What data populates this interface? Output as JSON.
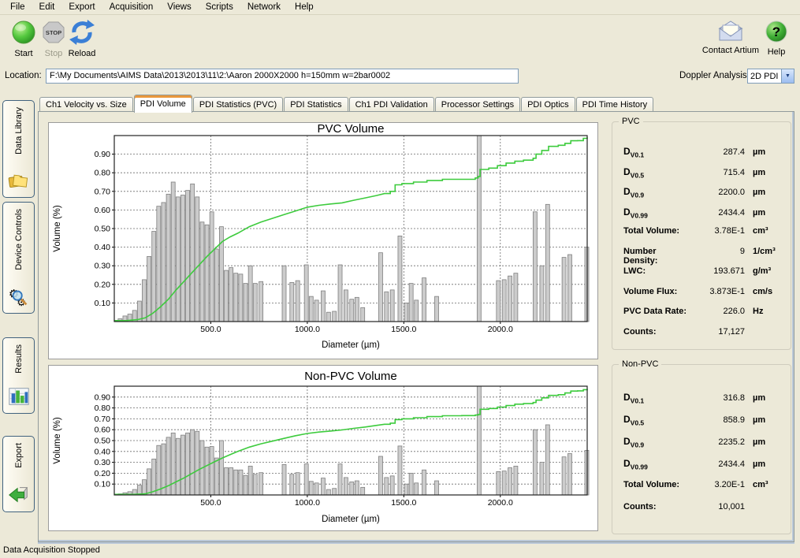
{
  "menu": {
    "items": [
      "File",
      "Edit",
      "Export",
      "Acquisition",
      "Views",
      "Scripts",
      "Network",
      "Help"
    ]
  },
  "toolbar": {
    "start_label": "Start",
    "stop_label": "Stop",
    "stop_badge": "STOP",
    "reload_label": "Reload",
    "contact_label": "Contact Artium",
    "help_label": "Help"
  },
  "location": {
    "label": "Location:",
    "value": "F:\\My Documents\\AIMS Data\\2013\\2013\\11\\2:\\Aaron 2000X2000  h=150mm w=2bar0002"
  },
  "doppler": {
    "label": "Doppler Analysis:",
    "value": "2D PDI",
    "arrow_icon": "chevron-down-icon"
  },
  "sidebar": {
    "items": [
      {
        "label": "Data Library",
        "icon": "folders-icon"
      },
      {
        "label": "Device Controls",
        "icon": "gears-icon"
      },
      {
        "label": "Results",
        "icon": "bar-chart-icon"
      },
      {
        "label": "Export",
        "icon": "export-arrow-icon"
      }
    ]
  },
  "tabs": [
    "Ch1 Velocity vs. Size",
    "PDI Volume",
    "PDI Statistics (PVC)",
    "PDI Statistics",
    "Ch1 PDI Validation",
    "Processor Settings",
    "PDI Optics",
    "PDI Time History"
  ],
  "tabs_selected_index": 1,
  "stats": {
    "pvc": {
      "title": "PVC",
      "rows": [
        {
          "d": "D",
          "sub": "V0.1",
          "value": "287.4",
          "unit": "µm"
        },
        {
          "d": "D",
          "sub": "V0.5",
          "value": "715.4",
          "unit": "µm"
        },
        {
          "d": "D",
          "sub": "V0.9",
          "value": "2200.0",
          "unit": "µm"
        },
        {
          "d": "D",
          "sub": "V0.99",
          "value": "2434.4",
          "unit": "µm"
        },
        {
          "label": "Total Volume:",
          "value": "3.78E-1",
          "unit": "cm³"
        },
        {
          "label": "Number Density:",
          "value": "9",
          "unit": "1/cm³"
        },
        {
          "label": "LWC:",
          "value": "193.671",
          "unit": "g/m³"
        },
        {
          "label": "Volume Flux:",
          "value": "3.873E-1",
          "unit": "cm/s"
        },
        {
          "label": "PVC Data Rate:",
          "value": "226.0",
          "unit": "Hz"
        },
        {
          "label": "Counts:",
          "value": "17,127",
          "unit": ""
        }
      ]
    },
    "nonpvc": {
      "title": "Non-PVC",
      "rows": [
        {
          "d": "D",
          "sub": "V0.1",
          "value": "316.8",
          "unit": "µm"
        },
        {
          "d": "D",
          "sub": "V0.5",
          "value": "858.9",
          "unit": "µm"
        },
        {
          "d": "D",
          "sub": "V0.9",
          "value": "2235.2",
          "unit": "µm"
        },
        {
          "d": "D",
          "sub": "V0.99",
          "value": "2434.4",
          "unit": "µm"
        },
        {
          "label": "Total Volume:",
          "value": "3.20E-1",
          "unit": "cm³"
        },
        {
          "label": "Counts:",
          "value": "10,001",
          "unit": ""
        }
      ]
    }
  },
  "status": "Data Acquisition Stopped",
  "chart_data": [
    {
      "type": "bar",
      "title": "PVC Volume",
      "xlabel": "Diameter (µm)",
      "ylabel": "Volume (%)",
      "xlim": [
        0,
        2450
      ],
      "ylim": [
        0,
        1.0
      ],
      "xticks": [
        500,
        1000,
        1500,
        2000
      ],
      "xtick_labels": [
        "500.0",
        "1000.0",
        "1500.0",
        "2000.0"
      ],
      "yticks": [
        0.1,
        0.2,
        0.3,
        0.4,
        0.5,
        0.6,
        0.7,
        0.8,
        0.9
      ],
      "grid": true,
      "colors": {
        "bar_fill": "#cccccc",
        "bar_stroke": "#7f7f7f",
        "line": "#3dcb3d"
      },
      "bars": [
        [
          30,
          0.015
        ],
        [
          55,
          0.03
        ],
        [
          80,
          0.04
        ],
        [
          105,
          0.06
        ],
        [
          130,
          0.11
        ],
        [
          155,
          0.225
        ],
        [
          180,
          0.35
        ],
        [
          205,
          0.485
        ],
        [
          230,
          0.62
        ],
        [
          255,
          0.64
        ],
        [
          280,
          0.685
        ],
        [
          305,
          0.75
        ],
        [
          330,
          0.67
        ],
        [
          355,
          0.68
        ],
        [
          380,
          0.705
        ],
        [
          405,
          0.74
        ],
        [
          430,
          0.67
        ],
        [
          455,
          0.535
        ],
        [
          480,
          0.52
        ],
        [
          505,
          0.59
        ],
        [
          530,
          0.39
        ],
        [
          555,
          0.51
        ],
        [
          580,
          0.275
        ],
        [
          605,
          0.29
        ],
        [
          630,
          0.26
        ],
        [
          655,
          0.255
        ],
        [
          680,
          0.205
        ],
        [
          705,
          0.3
        ],
        [
          730,
          0.205
        ],
        [
          760,
          0.215
        ],
        [
          880,
          0.3
        ],
        [
          920,
          0.21
        ],
        [
          950,
          0.22
        ],
        [
          995,
          0.305
        ],
        [
          1020,
          0.135
        ],
        [
          1048,
          0.115
        ],
        [
          1082,
          0.165
        ],
        [
          1110,
          0.05
        ],
        [
          1140,
          0.055
        ],
        [
          1170,
          0.305
        ],
        [
          1200,
          0.17
        ],
        [
          1230,
          0.12
        ],
        [
          1257,
          0.13
        ],
        [
          1287,
          0.075
        ],
        [
          1380,
          0.37
        ],
        [
          1410,
          0.16
        ],
        [
          1440,
          0.17
        ],
        [
          1480,
          0.46
        ],
        [
          1512,
          0.1
        ],
        [
          1538,
          0.205
        ],
        [
          1565,
          0.115
        ],
        [
          1605,
          0.235
        ],
        [
          1670,
          0.135
        ],
        [
          1890,
          1.0
        ],
        [
          1990,
          0.22
        ],
        [
          2020,
          0.225
        ],
        [
          2050,
          0.245
        ],
        [
          2080,
          0.26
        ],
        [
          2180,
          0.59
        ],
        [
          2215,
          0.3
        ],
        [
          2245,
          0.63
        ],
        [
          2330,
          0.345
        ],
        [
          2360,
          0.36
        ],
        [
          2448,
          0.4
        ]
      ],
      "cumulative_line": {
        "name": "cumulative-volume",
        "step_from": 1400,
        "points": [
          [
            0,
            0.005
          ],
          [
            60,
            0.005
          ],
          [
            120,
            0.01
          ],
          [
            160,
            0.02
          ],
          [
            200,
            0.045
          ],
          [
            240,
            0.08
          ],
          [
            280,
            0.12
          ],
          [
            320,
            0.17
          ],
          [
            360,
            0.215
          ],
          [
            400,
            0.26
          ],
          [
            440,
            0.305
          ],
          [
            480,
            0.35
          ],
          [
            520,
            0.39
          ],
          [
            560,
            0.43
          ],
          [
            600,
            0.455
          ],
          [
            640,
            0.475
          ],
          [
            700,
            0.51
          ],
          [
            760,
            0.535
          ],
          [
            820,
            0.555
          ],
          [
            880,
            0.575
          ],
          [
            940,
            0.595
          ],
          [
            1000,
            0.615
          ],
          [
            1060,
            0.625
          ],
          [
            1120,
            0.632
          ],
          [
            1180,
            0.638
          ],
          [
            1240,
            0.652
          ],
          [
            1300,
            0.665
          ],
          [
            1360,
            0.678
          ],
          [
            1400,
            0.688
          ],
          [
            1430,
            0.7
          ],
          [
            1455,
            0.735
          ],
          [
            1490,
            0.742
          ],
          [
            1550,
            0.75
          ],
          [
            1620,
            0.758
          ],
          [
            1700,
            0.765
          ],
          [
            1800,
            0.765
          ],
          [
            1870,
            0.772
          ],
          [
            1885,
            0.78
          ],
          [
            1895,
            0.818
          ],
          [
            1940,
            0.825
          ],
          [
            1985,
            0.838
          ],
          [
            2030,
            0.852
          ],
          [
            2075,
            0.862
          ],
          [
            2120,
            0.868
          ],
          [
            2170,
            0.878
          ],
          [
            2185,
            0.9
          ],
          [
            2215,
            0.92
          ],
          [
            2250,
            0.942
          ],
          [
            2300,
            0.948
          ],
          [
            2335,
            0.958
          ],
          [
            2365,
            0.972
          ],
          [
            2400,
            0.973
          ],
          [
            2430,
            0.985
          ],
          [
            2450,
            0.99
          ]
        ]
      }
    },
    {
      "type": "bar",
      "title": "Non-PVC Volume",
      "xlabel": "Diameter (µm)",
      "ylabel": "Volume (%)",
      "xlim": [
        0,
        2450
      ],
      "ylim": [
        0,
        1.0
      ],
      "xticks": [
        500,
        1000,
        1500,
        2000
      ],
      "xtick_labels": [
        "500.0",
        "1000.0",
        "1500.0",
        "2000.0"
      ],
      "yticks": [
        0.1,
        0.2,
        0.3,
        0.4,
        0.5,
        0.6,
        0.7,
        0.8,
        0.9
      ],
      "grid": true,
      "colors": {
        "bar_fill": "#cccccc",
        "bar_stroke": "#7f7f7f",
        "line": "#3dcb3d"
      },
      "bars": [
        [
          30,
          0.01
        ],
        [
          55,
          0.02
        ],
        [
          80,
          0.03
        ],
        [
          105,
          0.05
        ],
        [
          130,
          0.09
        ],
        [
          155,
          0.14
        ],
        [
          180,
          0.24
        ],
        [
          205,
          0.33
        ],
        [
          230,
          0.455
        ],
        [
          255,
          0.47
        ],
        [
          280,
          0.53
        ],
        [
          305,
          0.57
        ],
        [
          330,
          0.52
        ],
        [
          355,
          0.55
        ],
        [
          380,
          0.57
        ],
        [
          405,
          0.6
        ],
        [
          430,
          0.585
        ],
        [
          455,
          0.5
        ],
        [
          480,
          0.44
        ],
        [
          505,
          0.445
        ],
        [
          530,
          0.34
        ],
        [
          555,
          0.5
        ],
        [
          580,
          0.25
        ],
        [
          605,
          0.25
        ],
        [
          630,
          0.23
        ],
        [
          655,
          0.23
        ],
        [
          680,
          0.18
        ],
        [
          705,
          0.265
        ],
        [
          730,
          0.19
        ],
        [
          760,
          0.205
        ],
        [
          880,
          0.28
        ],
        [
          920,
          0.19
        ],
        [
          950,
          0.205
        ],
        [
          995,
          0.285
        ],
        [
          1020,
          0.125
        ],
        [
          1048,
          0.11
        ],
        [
          1082,
          0.155
        ],
        [
          1110,
          0.05
        ],
        [
          1140,
          0.06
        ],
        [
          1170,
          0.285
        ],
        [
          1200,
          0.16
        ],
        [
          1230,
          0.12
        ],
        [
          1257,
          0.13
        ],
        [
          1287,
          0.07
        ],
        [
          1380,
          0.355
        ],
        [
          1410,
          0.16
        ],
        [
          1440,
          0.175
        ],
        [
          1480,
          0.45
        ],
        [
          1512,
          0.1
        ],
        [
          1538,
          0.2
        ],
        [
          1565,
          0.11
        ],
        [
          1605,
          0.23
        ],
        [
          1670,
          0.13
        ],
        [
          1890,
          1.0
        ],
        [
          1990,
          0.215
        ],
        [
          2020,
          0.22
        ],
        [
          2050,
          0.25
        ],
        [
          2080,
          0.265
        ],
        [
          2180,
          0.6
        ],
        [
          2215,
          0.3
        ],
        [
          2245,
          0.645
        ],
        [
          2330,
          0.35
        ],
        [
          2360,
          0.38
        ],
        [
          2448,
          0.41
        ]
      ],
      "cumulative_line": {
        "name": "cumulative-volume",
        "step_from": 1400,
        "points": [
          [
            0,
            0.005
          ],
          [
            100,
            0.005
          ],
          [
            160,
            0.01
          ],
          [
            200,
            0.03
          ],
          [
            240,
            0.055
          ],
          [
            280,
            0.085
          ],
          [
            320,
            0.12
          ],
          [
            360,
            0.155
          ],
          [
            400,
            0.195
          ],
          [
            440,
            0.235
          ],
          [
            480,
            0.27
          ],
          [
            520,
            0.305
          ],
          [
            560,
            0.34
          ],
          [
            600,
            0.37
          ],
          [
            640,
            0.4
          ],
          [
            700,
            0.44
          ],
          [
            760,
            0.47
          ],
          [
            820,
            0.495
          ],
          [
            880,
            0.52
          ],
          [
            940,
            0.545
          ],
          [
            1000,
            0.565
          ],
          [
            1060,
            0.578
          ],
          [
            1120,
            0.588
          ],
          [
            1180,
            0.598
          ],
          [
            1240,
            0.612
          ],
          [
            1300,
            0.625
          ],
          [
            1360,
            0.64
          ],
          [
            1400,
            0.65
          ],
          [
            1430,
            0.66
          ],
          [
            1455,
            0.693
          ],
          [
            1490,
            0.7
          ],
          [
            1550,
            0.71
          ],
          [
            1620,
            0.72
          ],
          [
            1700,
            0.728
          ],
          [
            1800,
            0.73
          ],
          [
            1870,
            0.735
          ],
          [
            1885,
            0.74
          ],
          [
            1895,
            0.788
          ],
          [
            1940,
            0.795
          ],
          [
            1985,
            0.808
          ],
          [
            2030,
            0.822
          ],
          [
            2075,
            0.835
          ],
          [
            2120,
            0.84
          ],
          [
            2170,
            0.85
          ],
          [
            2185,
            0.872
          ],
          [
            2215,
            0.893
          ],
          [
            2250,
            0.915
          ],
          [
            2300,
            0.922
          ],
          [
            2335,
            0.938
          ],
          [
            2365,
            0.955
          ],
          [
            2400,
            0.957
          ],
          [
            2430,
            0.968
          ],
          [
            2450,
            0.975
          ]
        ]
      }
    }
  ]
}
